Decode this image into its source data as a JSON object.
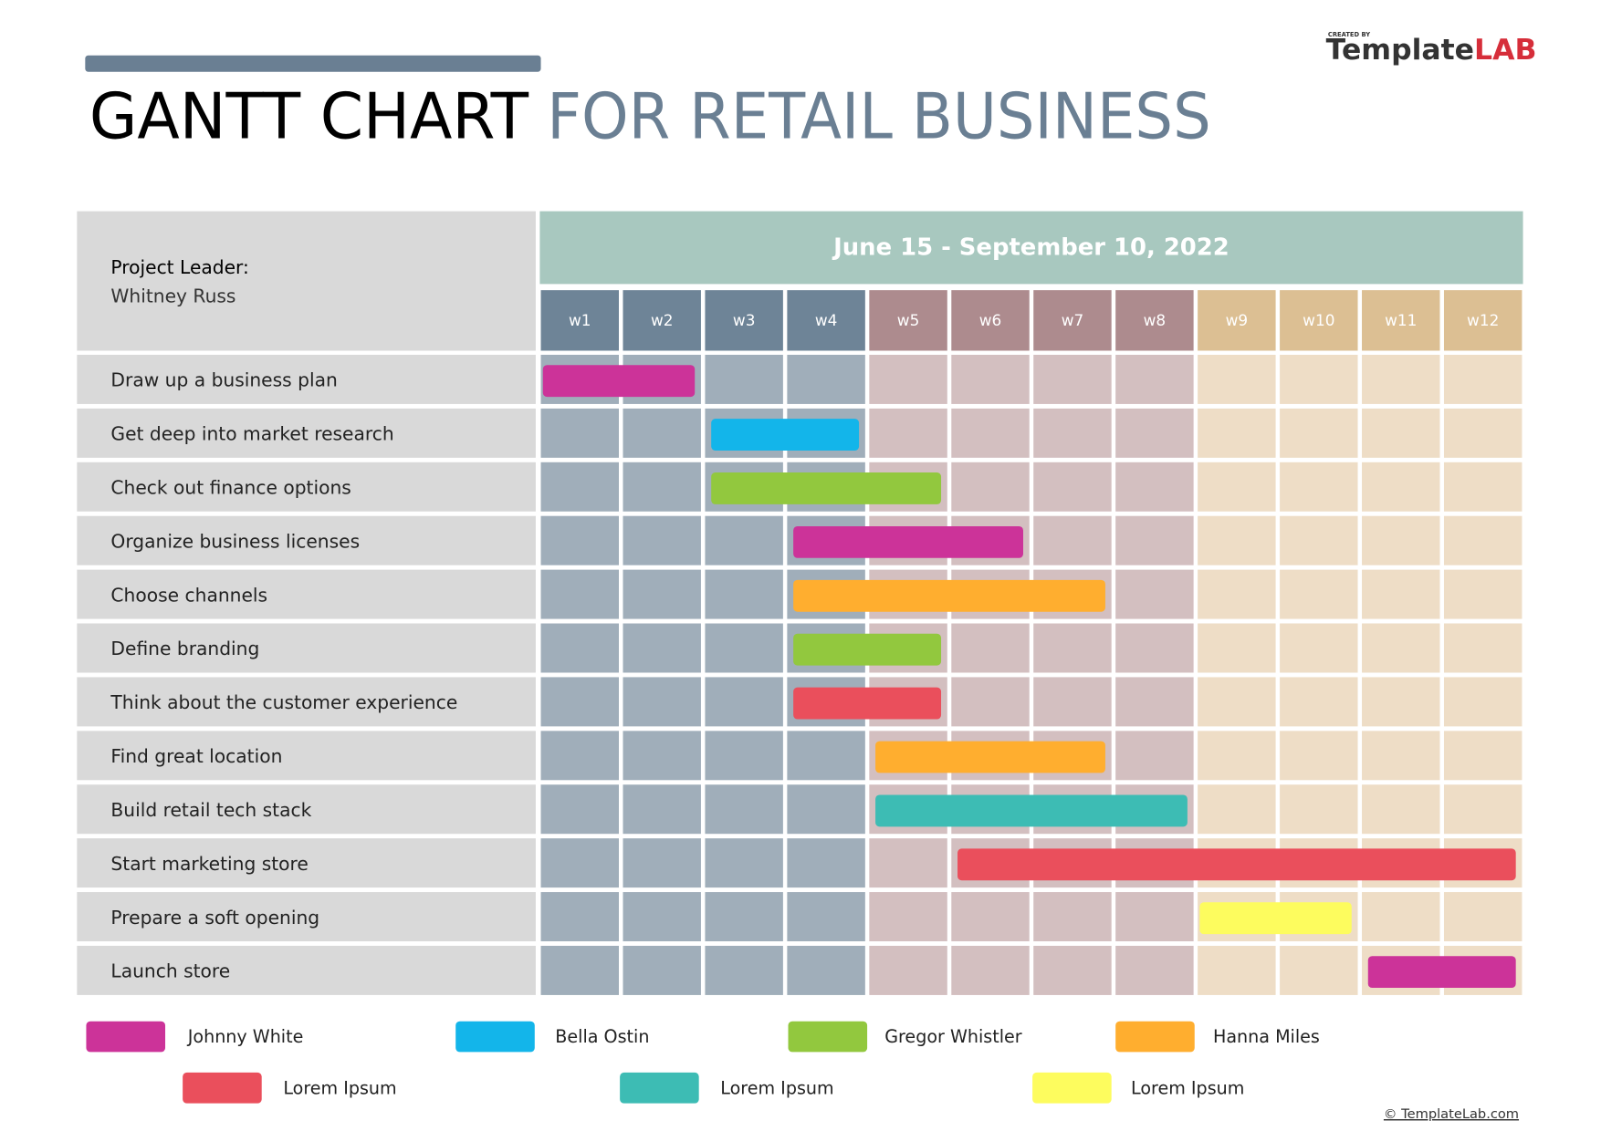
{
  "logo": {
    "small": "CREATED BY",
    "name_a": "Template",
    "name_b": "LAB"
  },
  "title": {
    "part1": "GANTT CHART",
    "part2": "FOR RETAIL BUSINESS"
  },
  "project": {
    "label": "Project Leader:",
    "name": "Whitney Russ"
  },
  "footer": "© TemplateLab.com",
  "chart_data": {
    "type": "gantt",
    "date_range": "June 15 - September 10, 2022",
    "weeks": [
      "w1",
      "w2",
      "w3",
      "w4",
      "w5",
      "w6",
      "w7",
      "w8",
      "w9",
      "w10",
      "w11",
      "w12"
    ],
    "week_header_colors": [
      "#6e8497",
      "#6e8497",
      "#6e8497",
      "#6e8497",
      "#ad8b8e",
      "#ad8b8e",
      "#ad8b8e",
      "#ad8b8e",
      "#dcbf93",
      "#dcbf93",
      "#dcbf93",
      "#dcbf93"
    ],
    "week_cell_colors": [
      "#a0aeba",
      "#a0aeba",
      "#a0aeba",
      "#a0aeba",
      "#d3bfc0",
      "#d3bfc0",
      "#d3bfc0",
      "#d3bfc0",
      "#eeddc6",
      "#eeddc6",
      "#eeddc6",
      "#eeddc6"
    ],
    "xlim": [
      0,
      12
    ],
    "tasks": [
      {
        "name": "Draw up a business plan",
        "start": 0.05,
        "end": 1.9,
        "color": "#cc3399"
      },
      {
        "name": "Get deep into market research",
        "start": 2.1,
        "end": 3.9,
        "color": "#13b5ea"
      },
      {
        "name": "Check out finance options",
        "start": 2.1,
        "end": 4.9,
        "color": "#92c83e"
      },
      {
        "name": "Organize business licenses",
        "start": 3.1,
        "end": 5.9,
        "color": "#cc3399"
      },
      {
        "name": "Choose channels",
        "start": 3.1,
        "end": 6.9,
        "color": "#ffae2f"
      },
      {
        "name": "Define branding",
        "start": 3.1,
        "end": 4.9,
        "color": "#92c83e"
      },
      {
        "name": "Think about the customer experience",
        "start": 3.1,
        "end": 4.9,
        "color": "#ea4f5c"
      },
      {
        "name": "Find great location",
        "start": 4.1,
        "end": 6.9,
        "color": "#ffae2f"
      },
      {
        "name": "Build retail tech stack",
        "start": 4.1,
        "end": 7.9,
        "color": "#3dbcb4"
      },
      {
        "name": "Start marketing store",
        "start": 5.1,
        "end": 11.9,
        "color": "#ea4f5c"
      },
      {
        "name": "Prepare a soft opening",
        "start": 8.05,
        "end": 9.9,
        "color": "#fdfc5e"
      },
      {
        "name": "Launch store",
        "start": 10.1,
        "end": 11.9,
        "color": "#cc3399"
      }
    ],
    "legend": [
      {
        "name": "Johnny White",
        "color": "#cc3399"
      },
      {
        "name": "Bella Ostin",
        "color": "#13b5ea"
      },
      {
        "name": "Gregor Whistler",
        "color": "#92c83e"
      },
      {
        "name": "Hanna Miles",
        "color": "#ffae2f"
      },
      {
        "name": "Lorem Ipsum",
        "color": "#ea4f5c"
      },
      {
        "name": "Lorem Ipsum",
        "color": "#3dbcb4"
      },
      {
        "name": "Lorem Ipsum",
        "color": "#fdfc5e"
      }
    ]
  }
}
